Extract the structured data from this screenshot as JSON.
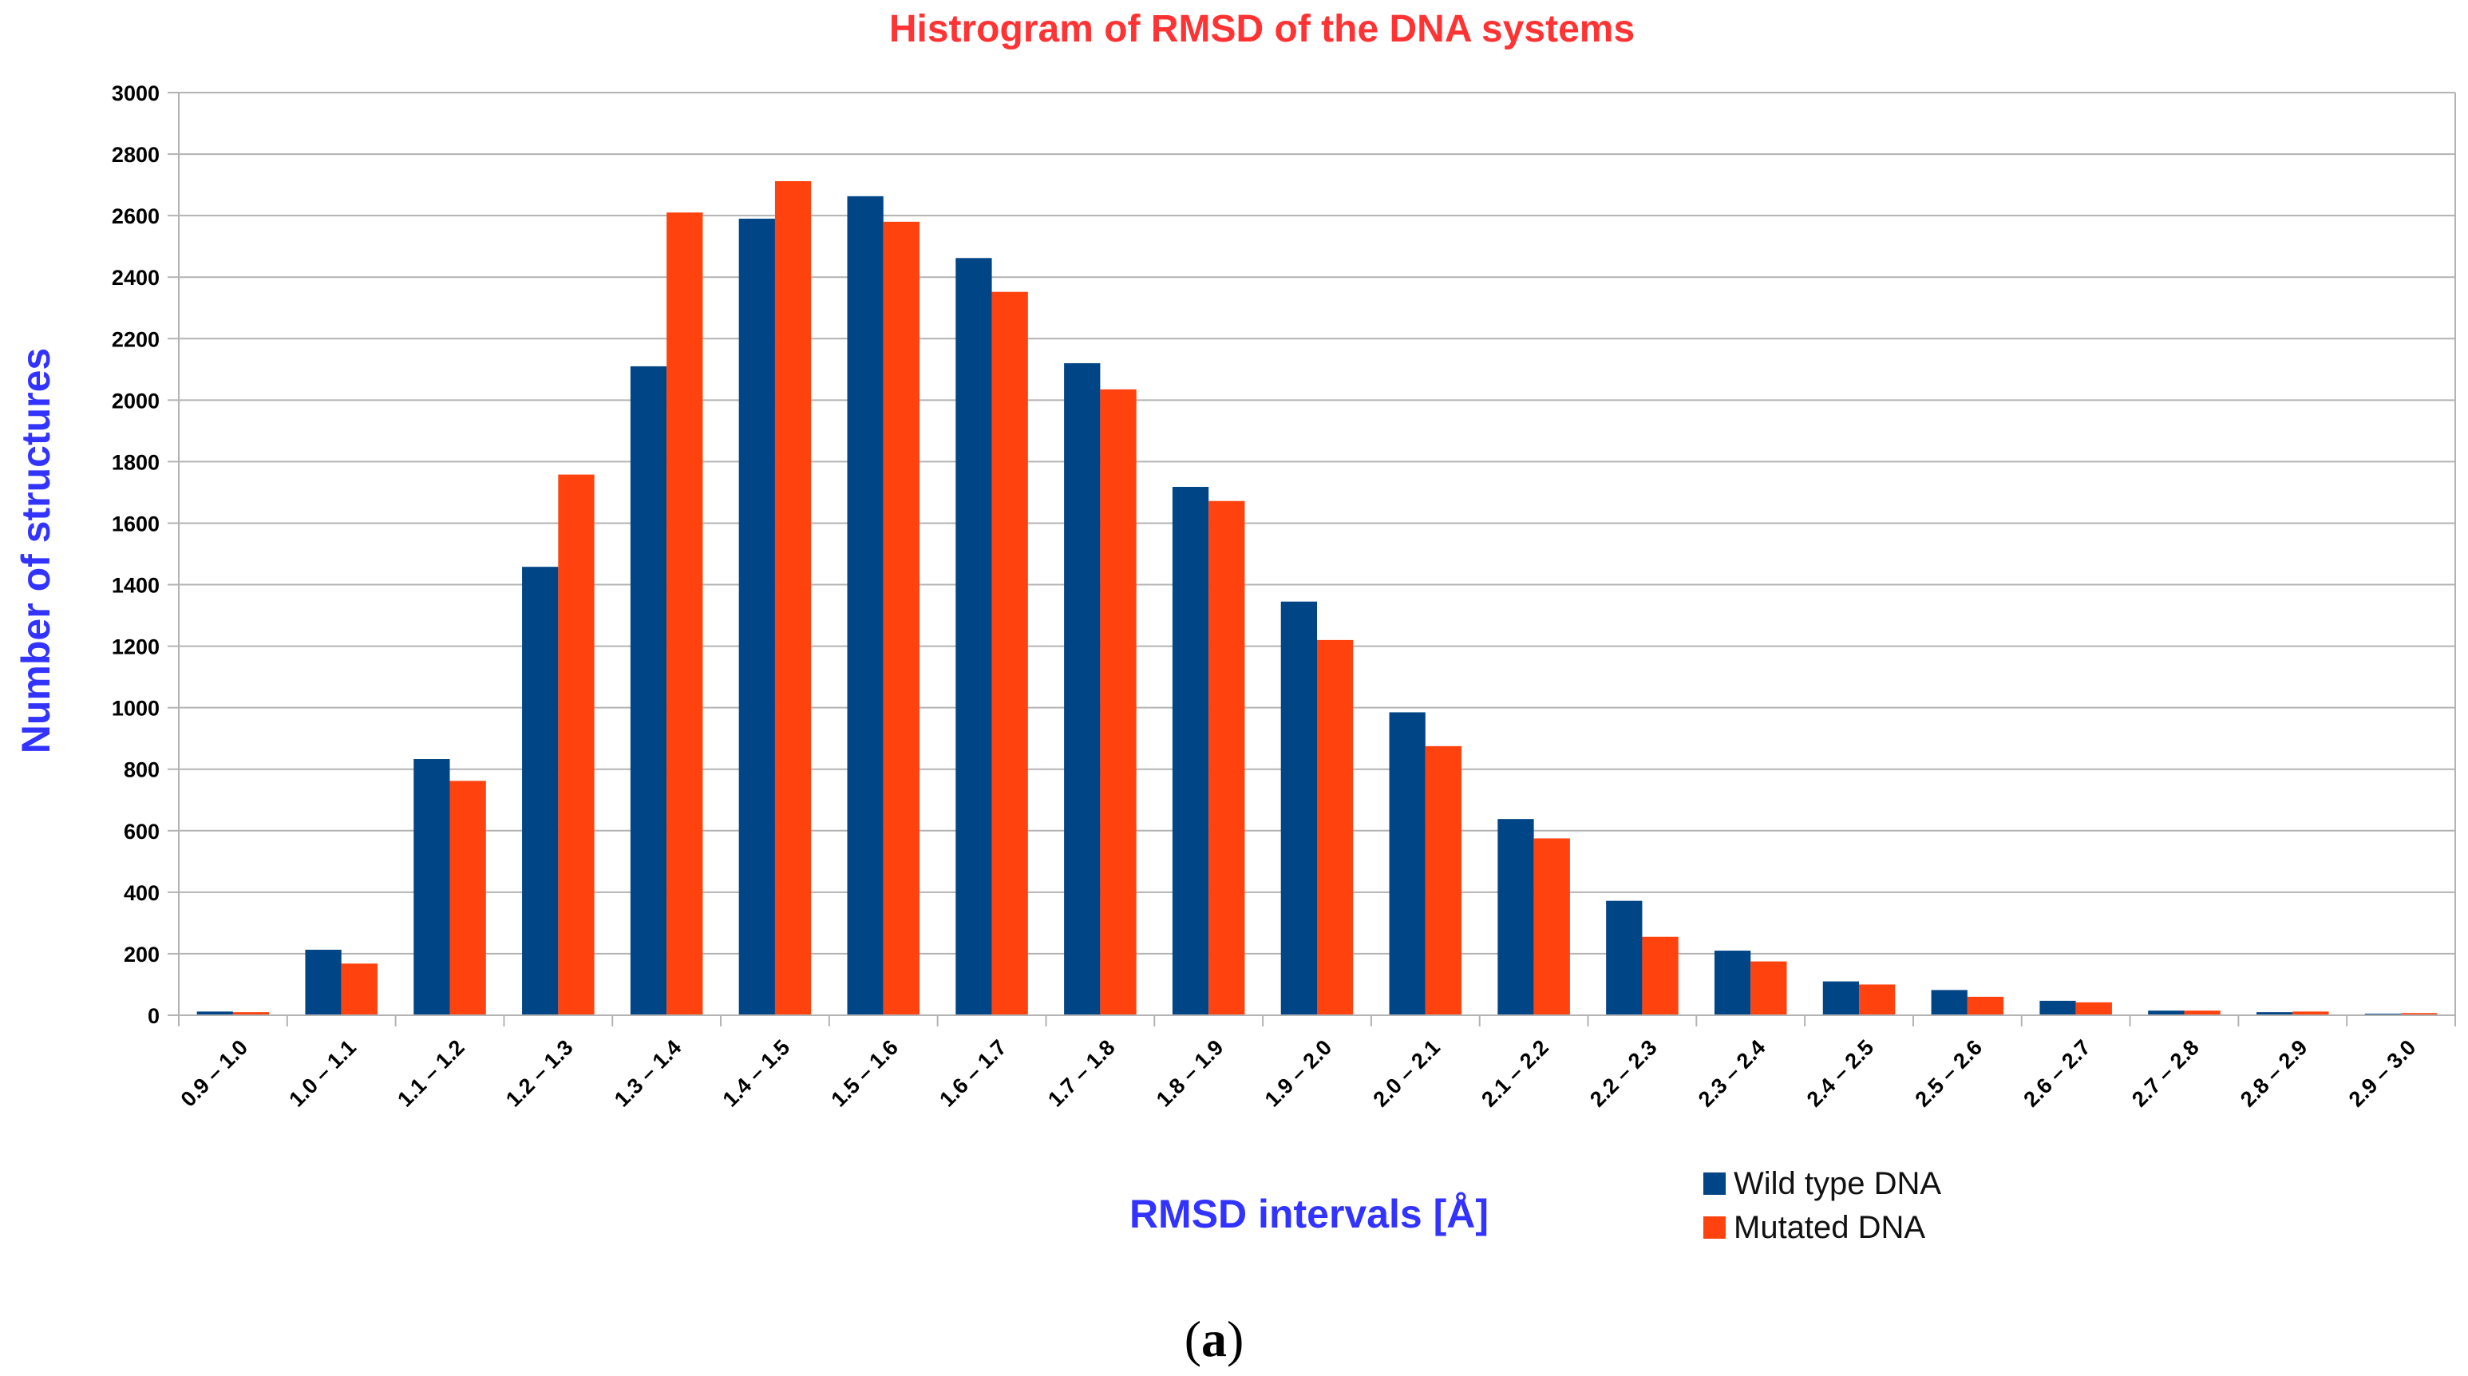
{
  "chart_data": {
    "type": "bar",
    "title": "Histrogram of RMSD of the DNA systems",
    "xlabel": "RMSD intervals [Å]",
    "ylabel": "Number of structures",
    "ylim": [
      0,
      3000
    ],
    "ytick_step": 200,
    "grid": true,
    "legend_position": "bottom-right",
    "categories": [
      "0.9 – 1.0",
      "1.0 – 1.1",
      "1.1 – 1.2",
      "1.2 – 1.3",
      "1.3 – 1.4",
      "1.4 – 1.5",
      "1.5 – 1.6",
      "1.6 – 1.7",
      "1.7 – 1.8",
      "1.8 – 1.9",
      "1.9 – 2.0",
      "2.0 – 2.1",
      "2.1 – 2.2",
      "2.2 – 2.3",
      "2.3 – 2.4",
      "2.4 – 2.5",
      "2.5 – 2.6",
      "2.6 – 2.7",
      "2.7 – 2.8",
      "2.8 – 2.9",
      "2.9 – 3.0"
    ],
    "series": [
      {
        "name": "Wild type DNA",
        "color": "#004586",
        "values": [
          12,
          213,
          833,
          1458,
          2110,
          2590,
          2663,
          2462,
          2120,
          1718,
          1345,
          985,
          638,
          372,
          210,
          110,
          82,
          47,
          15,
          10,
          5
        ]
      },
      {
        "name": "Mutated DNA",
        "color": "#ff420e",
        "values": [
          10,
          168,
          762,
          1758,
          2610,
          2712,
          2580,
          2352,
          2035,
          1672,
          1220,
          875,
          575,
          255,
          175,
          100,
          60,
          42,
          15,
          12,
          7
        ]
      }
    ],
    "colors": {
      "title": "#ff3333",
      "axis_label": "#3333ff",
      "grid": "#b3b3b3"
    }
  },
  "caption": {
    "open": "(",
    "letter": "a",
    "close": ")"
  }
}
